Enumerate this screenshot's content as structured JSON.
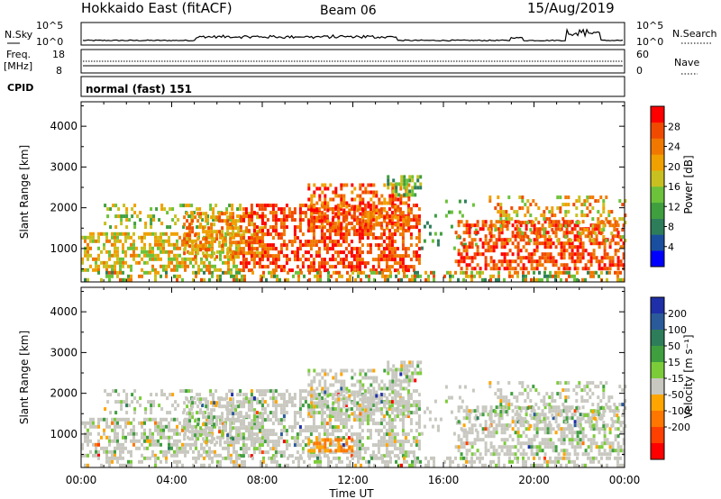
{
  "header": {
    "station": "Hokkaido East (fitACF)",
    "beam": "Beam 06",
    "date": "15/Aug/2019"
  },
  "noise_panel": {
    "left_label": "N.Sky",
    "right_label": "N.Search",
    "left_ticks": [
      "10^5",
      "10^0"
    ],
    "right_ticks": [
      "10^5",
      "10^0"
    ]
  },
  "freq_panel": {
    "left_label": "Freq.",
    "left_unit": "[MHz]",
    "right_label": "Nave",
    "left_ticks": [
      "18",
      "8"
    ],
    "right_ticks": [
      "60",
      "0"
    ]
  },
  "cpid_panel": {
    "label": "CPID",
    "mode": "normal (fast) 151"
  },
  "x_axis": {
    "label": "Time UT",
    "ticks": [
      "00:00",
      "04:00",
      "08:00",
      "12:00",
      "16:00",
      "20:00",
      "00:00"
    ]
  },
  "colors": {
    "power_scale": [
      "#0000ff",
      "#1a4fa0",
      "#2e7d5a",
      "#3f9f3f",
      "#6cc23a",
      "#c8c020",
      "#f0a000",
      "#f07800",
      "#f04a00",
      "#ff0000"
    ],
    "velocity_scale": [
      "#1f2fa8",
      "#2a5a9a",
      "#2e7d5a",
      "#3f9f3f",
      "#7ccc3a",
      "#c8c8c0",
      "#ffa500",
      "#ff7700",
      "#ff4000",
      "#ff0000"
    ]
  },
  "chart_data": [
    {
      "type": "heatmap",
      "name": "power",
      "ylabel": "Slant Range [km]",
      "ylim": [
        180,
        4600
      ],
      "y_ticks": [
        "1000",
        "2000",
        "3000",
        "4000"
      ],
      "xlabel": "Time UT",
      "colorbar_label": "Power [dB]",
      "colorbar_ticks": [
        "4",
        "8",
        "12",
        "16",
        "20",
        "24",
        "28"
      ],
      "colorbar_range": [
        0,
        32
      ]
    },
    {
      "type": "heatmap",
      "name": "velocity",
      "ylabel": "Slant Range [km]",
      "ylim": [
        180,
        4600
      ],
      "y_ticks": [
        "1000",
        "2000",
        "3000",
        "4000"
      ],
      "xlabel": "Time UT",
      "colorbar_label": "Velocity [m s⁻¹]",
      "colorbar_ticks": [
        "200",
        "100",
        "50",
        "15",
        "-15",
        "-50",
        "-100",
        "-200"
      ]
    }
  ]
}
